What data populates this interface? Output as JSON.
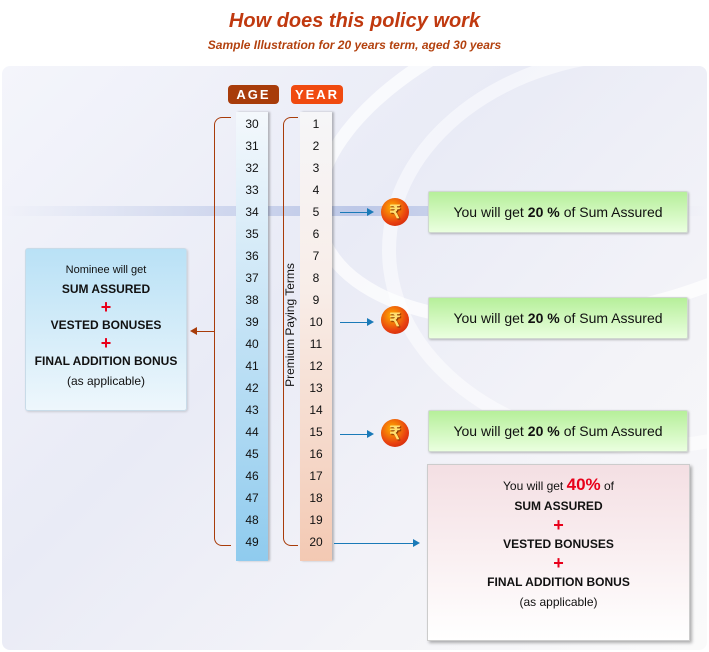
{
  "title": "How does this policy work",
  "subtitle": "Sample Illustration for 20 years term, aged 30 years",
  "age_header": "AGE",
  "year_header": "YEAR",
  "ages": [
    "30",
    "31",
    "32",
    "33",
    "34",
    "35",
    "36",
    "37",
    "38",
    "39",
    "40",
    "41",
    "42",
    "43",
    "44",
    "45",
    "46",
    "47",
    "48",
    "49"
  ],
  "years": [
    "1",
    "2",
    "3",
    "4",
    "5",
    "6",
    "7",
    "8",
    "9",
    "10",
    "11",
    "12",
    "13",
    "14",
    "15",
    "16",
    "17",
    "18",
    "19",
    "20"
  ],
  "premium_label": "Premium Paying Terms",
  "payouts": [
    {
      "prefix": "You will get",
      "percent": "20 %",
      "suffix": "of  Sum Assured"
    },
    {
      "prefix": "You will get",
      "percent": "20 %",
      "suffix": "of  Sum Assured"
    },
    {
      "prefix": "You will get",
      "percent": "20 %",
      "suffix": "of  Sum Assured"
    }
  ],
  "rupee_symbol": "₹",
  "nominee": {
    "intro": "Nominee will get",
    "item1": "SUM ASSURED",
    "item2": "VESTED BONUSES",
    "item3": "FINAL ADDITION BONUS",
    "note": "(as applicable)",
    "plus": "+"
  },
  "maturity": {
    "prefix": "You will get",
    "percent": "40%",
    "of": "of",
    "item1": "SUM ASSURED",
    "item2": "VESTED BONUSES",
    "item3": "FINAL ADDITION BONUS",
    "note": "(as applicable)",
    "plus": "+"
  },
  "colors": {
    "title": "#c0390f",
    "age_header": "#a83c0a",
    "year_header": "#f04a10",
    "arrow": "#1a7ab8",
    "plus": "#e8001a"
  }
}
